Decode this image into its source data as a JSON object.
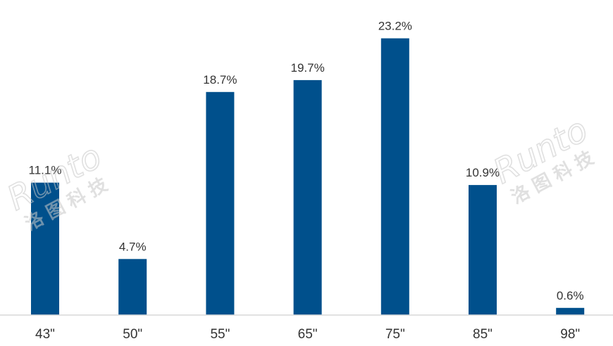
{
  "chart_data": {
    "type": "bar",
    "categories": [
      "43\"",
      "50\"",
      "55\"",
      "65\"",
      "75\"",
      "85\"",
      "98\""
    ],
    "values": [
      11.1,
      4.7,
      18.7,
      19.7,
      23.2,
      10.9,
      0.6
    ],
    "value_labels": [
      "11.1%",
      "4.7%",
      "18.7%",
      "19.7%",
      "23.2%",
      "10.9%",
      "0.6%"
    ],
    "ylim": [
      0,
      25
    ],
    "grid": false,
    "legend": "none",
    "bar_color": "#00508c",
    "axis_color": "#d9d9d9"
  },
  "watermark": {
    "latin": "Runto",
    "cjk": "洛图科技",
    "color": "#c8c8c8"
  }
}
